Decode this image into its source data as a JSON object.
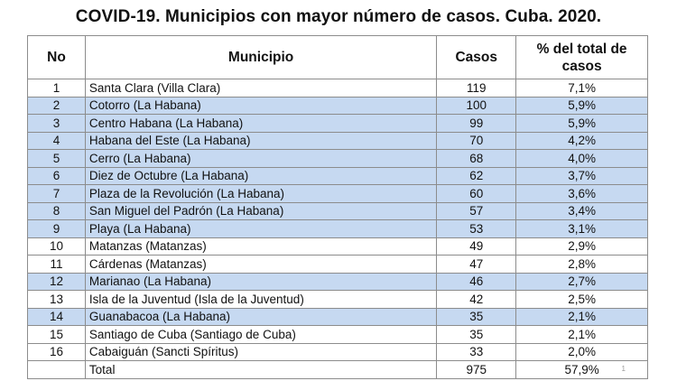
{
  "title": "COVID-19. Municipios con mayor número de casos. Cuba. 2020.",
  "headers": {
    "no": "No",
    "municipio": "Municipio",
    "casos": "Casos",
    "pct": "% del total de casos"
  },
  "rows": [
    {
      "no": "1",
      "municipio": "Santa Clara (Villa Clara)",
      "casos": "119",
      "pct": "7,1%",
      "highlight": false
    },
    {
      "no": "2",
      "municipio": "Cotorro (La Habana)",
      "casos": "100",
      "pct": "5,9%",
      "highlight": true
    },
    {
      "no": "3",
      "municipio": "Centro Habana (La Habana)",
      "casos": "99",
      "pct": "5,9%",
      "highlight": true
    },
    {
      "no": "4",
      "municipio": "Habana del Este (La Habana)",
      "casos": "70",
      "pct": "4,2%",
      "highlight": true
    },
    {
      "no": "5",
      "municipio": "Cerro (La Habana)",
      "casos": "68",
      "pct": "4,0%",
      "highlight": true
    },
    {
      "no": "6",
      "municipio": "Diez de Octubre (La Habana)",
      "casos": "62",
      "pct": "3,7%",
      "highlight": true
    },
    {
      "no": "7",
      "municipio": "Plaza de la Revolución (La Habana)",
      "casos": "60",
      "pct": "3,6%",
      "highlight": true
    },
    {
      "no": "8",
      "municipio": "San Miguel del Padrón (La Habana)",
      "casos": "57",
      "pct": "3,4%",
      "highlight": true
    },
    {
      "no": "9",
      "municipio": "Playa (La Habana)",
      "casos": "53",
      "pct": "3,1%",
      "highlight": true
    },
    {
      "no": "10",
      "municipio": "Matanzas (Matanzas)",
      "casos": "49",
      "pct": "2,9%",
      "highlight": false
    },
    {
      "no": "11",
      "municipio": "Cárdenas (Matanzas)",
      "casos": "47",
      "pct": "2,8%",
      "highlight": false
    },
    {
      "no": "12",
      "municipio": "Marianao (La Habana)",
      "casos": "46",
      "pct": "2,7%",
      "highlight": true
    },
    {
      "no": "13",
      "municipio": "Isla de la Juventud (Isla de la Juventud)",
      "casos": "42",
      "pct": "2,5%",
      "highlight": false
    },
    {
      "no": "14",
      "municipio": "Guanabacoa (La Habana)",
      "casos": "35",
      "pct": "2,1%",
      "highlight": true
    },
    {
      "no": "15",
      "municipio": "Santiago de Cuba (Santiago de Cuba)",
      "casos": "35",
      "pct": "2,1%",
      "highlight": false
    },
    {
      "no": "16",
      "municipio": "Cabaiguán (Sancti Spíritus)",
      "casos": "33",
      "pct": "2,0%",
      "highlight": false
    }
  ],
  "total": {
    "no": "",
    "municipio": "Total",
    "casos": "975",
    "pct": "57,9%"
  },
  "footnote": "1",
  "colors": {
    "highlight": "#c6d9f1",
    "border": "#8c8c8c"
  }
}
